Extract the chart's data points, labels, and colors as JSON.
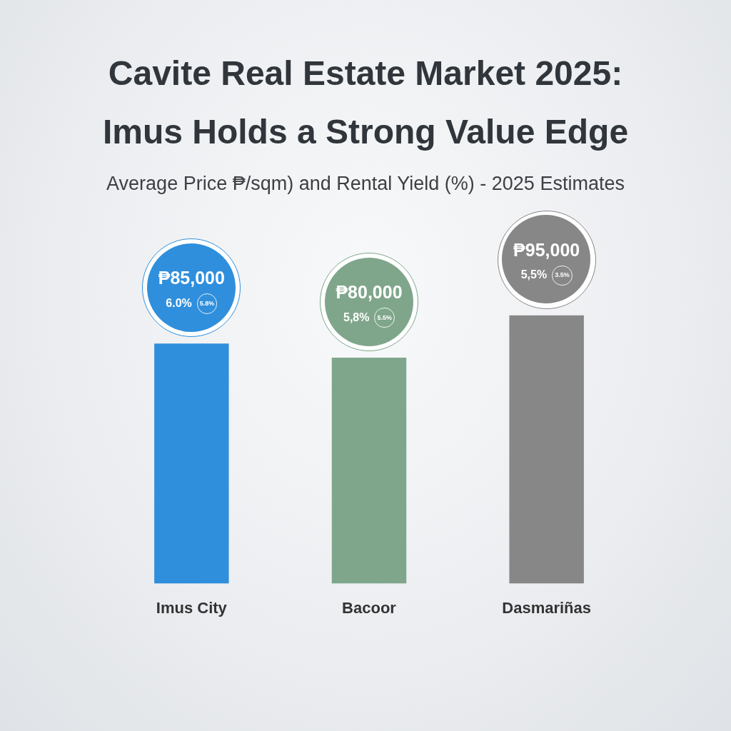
{
  "chart_data": {
    "type": "bar",
    "title": "Cavite Real Estate Market 2025: Imus Holds a Strong Value Edge",
    "subtitle": "Average Price ₱/sqm) and Rental Yield (%) - 2025 Estimates",
    "categories": [
      "Imus City",
      "Bacoor",
      "Dasmariñas"
    ],
    "values": [
      85000,
      80000,
      95000
    ],
    "colors": [
      "#2f8fdc",
      "#7fa68b",
      "#878787"
    ],
    "value_labels": [
      "₱85,000",
      "₱80,000",
      "₱95,000"
    ],
    "annotations": [
      "6.0%",
      "5.8%",
      "5,8%",
      "5.5%",
      "5,5%",
      "3.5%"
    ],
    "legend": false,
    "grid": false,
    "tick_labels": "x"
  }
}
